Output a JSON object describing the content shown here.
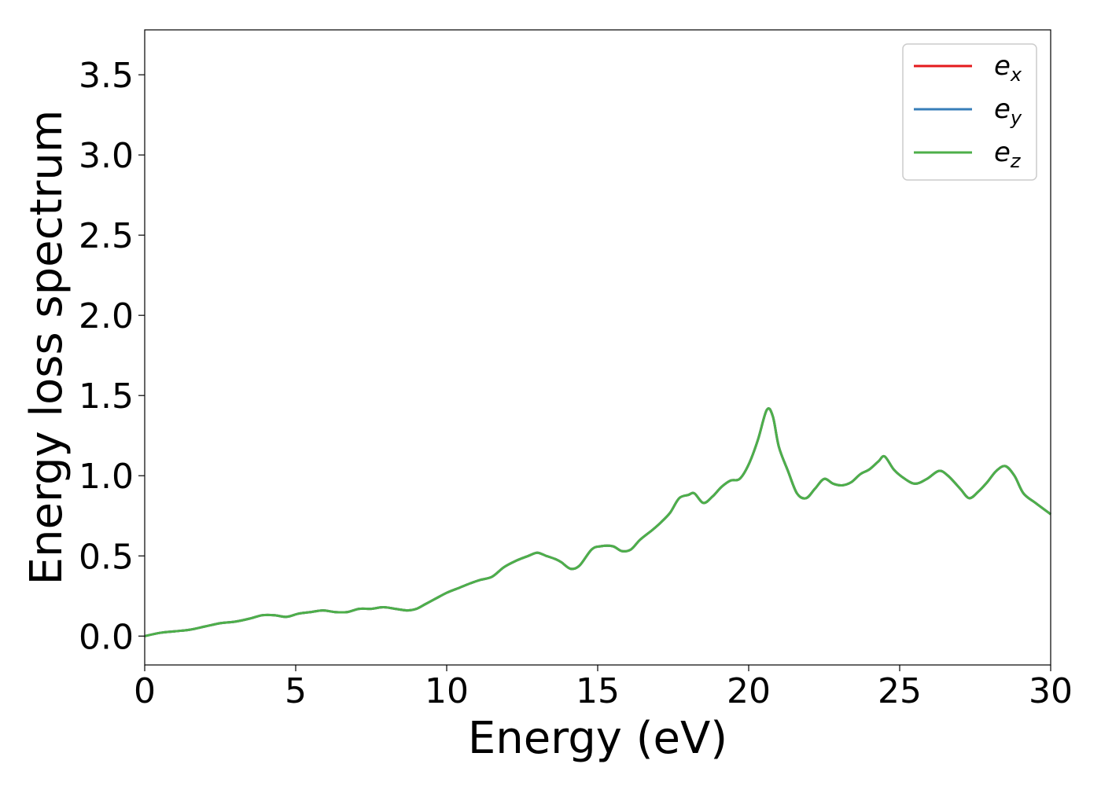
{
  "chart_data": {
    "type": "line",
    "title": "",
    "xlabel": "Energy (eV)",
    "ylabel": "Energy loss spectrum",
    "xlim": [
      0,
      30
    ],
    "ylim": [
      -0.18,
      3.78
    ],
    "xticks": [
      0,
      5,
      10,
      15,
      20,
      25,
      30
    ],
    "xtick_labels": [
      "0",
      "5",
      "10",
      "15",
      "20",
      "25",
      "30"
    ],
    "yticks": [
      0.0,
      0.5,
      1.0,
      1.5,
      2.0,
      2.5,
      3.0,
      3.5
    ],
    "ytick_labels": [
      "0.0",
      "0.5",
      "1.0",
      "1.5",
      "2.0",
      "2.5",
      "3.0",
      "3.5"
    ],
    "grid": false,
    "legend_position": "top-right",
    "x": [
      0.0,
      0.5,
      1.0,
      1.5,
      2.0,
      2.5,
      3.0,
      3.5,
      3.9,
      4.3,
      4.7,
      5.1,
      5.5,
      5.9,
      6.3,
      6.7,
      7.1,
      7.5,
      7.9,
      8.3,
      8.7,
      9.0,
      9.3,
      9.6,
      10.0,
      10.4,
      10.8,
      11.1,
      11.5,
      11.9,
      12.3,
      12.7,
      13.0,
      13.3,
      13.6,
      13.8,
      14.1,
      14.4,
      14.8,
      15.1,
      15.5,
      15.8,
      16.1,
      16.4,
      16.8,
      17.1,
      17.4,
      17.7,
      18.0,
      18.2,
      18.5,
      18.8,
      19.1,
      19.4,
      19.7,
      20.0,
      20.3,
      20.6,
      20.8,
      21.0,
      21.3,
      21.6,
      21.9,
      22.2,
      22.5,
      22.8,
      23.1,
      23.4,
      23.7,
      24.0,
      24.3,
      24.5,
      24.8,
      25.1,
      25.5,
      25.9,
      26.3,
      26.6,
      27.0,
      27.3,
      27.6,
      27.9,
      28.2,
      28.5,
      28.8,
      29.1,
      29.5,
      30.0
    ],
    "series": [
      {
        "name": "e_x",
        "label_main": "e",
        "label_sub": "x",
        "color": "#e41a1c",
        "values": [
          0.0,
          0.02,
          0.03,
          0.04,
          0.06,
          0.08,
          0.09,
          0.11,
          0.13,
          0.13,
          0.12,
          0.14,
          0.15,
          0.16,
          0.15,
          0.15,
          0.17,
          0.17,
          0.18,
          0.17,
          0.16,
          0.17,
          0.2,
          0.23,
          0.27,
          0.3,
          0.33,
          0.35,
          0.37,
          0.43,
          0.47,
          0.5,
          0.52,
          0.5,
          0.48,
          0.46,
          0.42,
          0.44,
          0.54,
          0.56,
          0.56,
          0.53,
          0.54,
          0.6,
          0.66,
          0.71,
          0.77,
          0.86,
          0.88,
          0.89,
          0.83,
          0.87,
          0.93,
          0.97,
          0.98,
          1.07,
          1.22,
          1.41,
          1.37,
          1.18,
          1.03,
          0.89,
          0.86,
          0.92,
          0.98,
          0.95,
          0.94,
          0.96,
          1.01,
          1.04,
          1.09,
          1.12,
          1.04,
          0.99,
          0.95,
          0.98,
          1.03,
          1.0,
          0.92,
          0.86,
          0.9,
          0.96,
          1.03,
          1.06,
          1.0,
          0.89,
          0.83,
          0.76
        ]
      },
      {
        "name": "e_y",
        "label_main": "e",
        "label_sub": "y",
        "color": "#377eb8",
        "values": [
          0.0,
          0.02,
          0.03,
          0.04,
          0.06,
          0.08,
          0.09,
          0.11,
          0.13,
          0.13,
          0.12,
          0.14,
          0.15,
          0.16,
          0.15,
          0.15,
          0.17,
          0.17,
          0.18,
          0.17,
          0.16,
          0.17,
          0.2,
          0.23,
          0.27,
          0.3,
          0.33,
          0.35,
          0.37,
          0.43,
          0.47,
          0.5,
          0.52,
          0.5,
          0.48,
          0.46,
          0.42,
          0.44,
          0.54,
          0.56,
          0.56,
          0.53,
          0.54,
          0.6,
          0.66,
          0.71,
          0.77,
          0.86,
          0.88,
          0.89,
          0.83,
          0.87,
          0.93,
          0.97,
          0.98,
          1.07,
          1.22,
          1.41,
          1.37,
          1.18,
          1.03,
          0.89,
          0.86,
          0.92,
          0.98,
          0.95,
          0.94,
          0.96,
          1.01,
          1.04,
          1.09,
          1.12,
          1.04,
          0.99,
          0.95,
          0.98,
          1.03,
          1.0,
          0.92,
          0.86,
          0.9,
          0.96,
          1.03,
          1.06,
          1.0,
          0.89,
          0.83,
          0.76
        ]
      },
      {
        "name": "e_z",
        "label_main": "e",
        "label_sub": "z",
        "color": "#4daf4a",
        "values": [
          0.0,
          0.02,
          0.03,
          0.04,
          0.06,
          0.08,
          0.09,
          0.11,
          0.13,
          0.13,
          0.12,
          0.14,
          0.15,
          0.16,
          0.15,
          0.15,
          0.17,
          0.17,
          0.18,
          0.17,
          0.16,
          0.17,
          0.2,
          0.23,
          0.27,
          0.3,
          0.33,
          0.35,
          0.37,
          0.43,
          0.47,
          0.5,
          0.52,
          0.5,
          0.48,
          0.46,
          0.42,
          0.44,
          0.54,
          0.56,
          0.56,
          0.53,
          0.54,
          0.6,
          0.66,
          0.71,
          0.77,
          0.86,
          0.88,
          0.89,
          0.83,
          0.87,
          0.93,
          0.97,
          0.98,
          1.07,
          1.22,
          1.41,
          1.37,
          1.18,
          1.03,
          0.89,
          0.86,
          0.92,
          0.98,
          0.95,
          0.94,
          0.96,
          1.01,
          1.04,
          1.09,
          1.12,
          1.04,
          0.99,
          0.95,
          0.98,
          1.03,
          1.0,
          0.92,
          0.86,
          0.9,
          0.96,
          1.03,
          1.06,
          1.0,
          0.89,
          0.83,
          0.76
        ]
      }
    ]
  }
}
